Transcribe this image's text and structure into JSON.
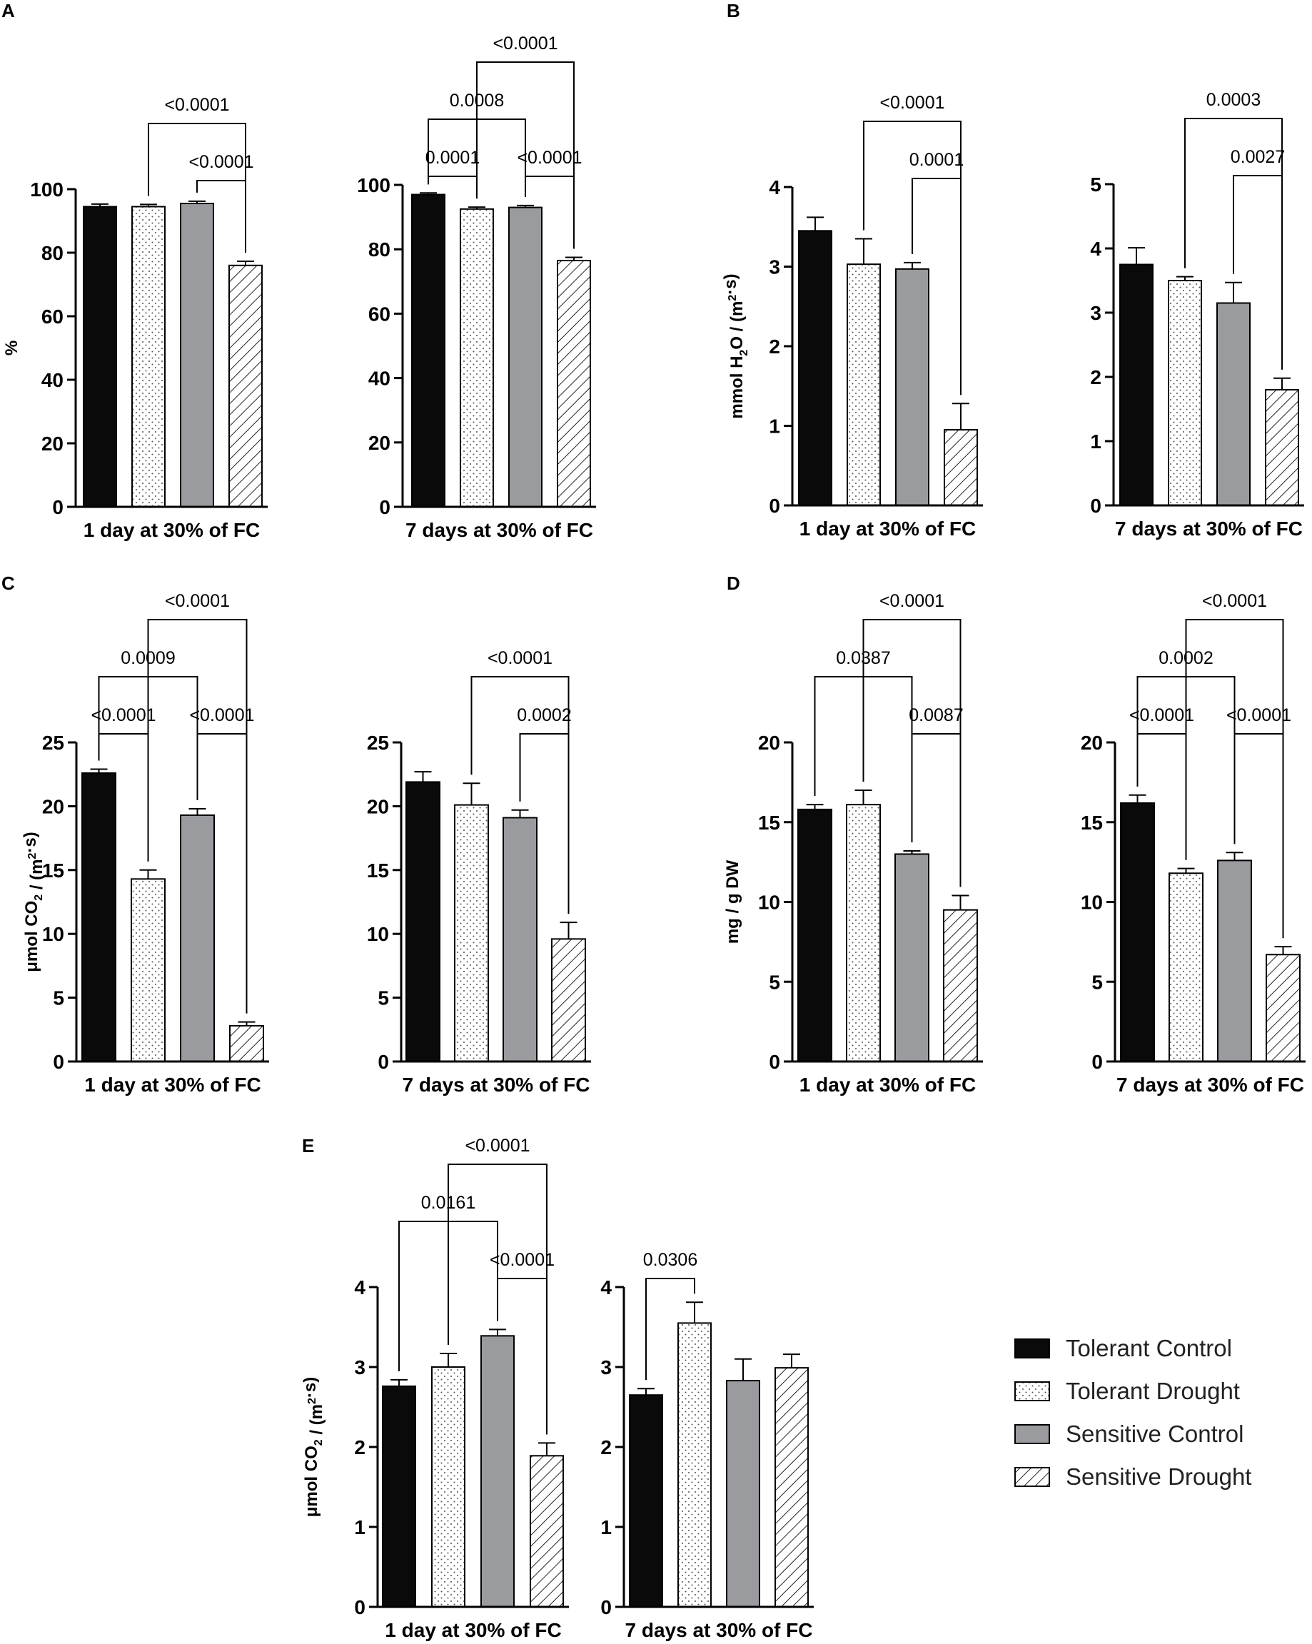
{
  "groups": [
    {
      "name": "Tolerant Control",
      "pattern": "solid-black"
    },
    {
      "name": "Tolerant Drought",
      "pattern": "dots"
    },
    {
      "name": "Sensitive Control",
      "pattern": "solid-gray"
    },
    {
      "name": "Sensitive Drought",
      "pattern": "hatch"
    }
  ],
  "colors": {
    "black": "#0a0a0a",
    "gray": "#9a9b9f",
    "white": "#ffffff"
  },
  "chart_data": [
    {
      "type": "bar",
      "panel": "A",
      "xlabel": "1 day at 30% of FC",
      "ylabel": "%",
      "ylim": [
        0,
        100
      ],
      "yticks": [
        0,
        20,
        40,
        60,
        80,
        100
      ],
      "values": [
        94.5,
        94.5,
        95.5,
        76
      ],
      "errors": [
        0.8,
        0.7,
        0.7,
        1.3
      ],
      "comparisons": [
        {
          "label": "<0.0001",
          "a": 2,
          "b": 3
        },
        {
          "label": "<0.0001",
          "a": 1,
          "b": 3
        }
      ]
    },
    {
      "type": "bar",
      "panel": "A",
      "xlabel": "7 days at 30% of FC",
      "ylabel": "",
      "ylim": [
        0,
        100
      ],
      "yticks": [
        0,
        20,
        40,
        60,
        80,
        100
      ],
      "values": [
        97,
        92.5,
        93,
        76.5
      ],
      "errors": [
        0.5,
        0.6,
        0.6,
        1
      ],
      "comparisons": [
        {
          "label": "0.0001",
          "a": 0,
          "b": 1
        },
        {
          "label": "<0.0001",
          "a": 2,
          "b": 3
        },
        {
          "label": "0.0008",
          "a": 0,
          "b": 2
        },
        {
          "label": "<0.0001",
          "a": 1,
          "b": 3
        }
      ]
    },
    {
      "type": "bar",
      "panel": "B",
      "xlabel": "1 day at 30% of FC",
      "ylabel": "mmol H2O / (m2·s)",
      "ylim": [
        0,
        4
      ],
      "yticks": [
        0,
        1,
        2,
        3,
        4
      ],
      "values": [
        3.45,
        3.03,
        2.97,
        0.95
      ],
      "errors": [
        0.17,
        0.32,
        0.08,
        0.33
      ],
      "comparisons": [
        {
          "label": "0.0001",
          "a": 2,
          "b": 3
        },
        {
          "label": "<0.0001",
          "a": 1,
          "b": 3
        }
      ]
    },
    {
      "type": "bar",
      "panel": "B",
      "xlabel": "7 days at 30% of FC",
      "ylabel": "",
      "ylim": [
        0,
        5
      ],
      "yticks": [
        0,
        1,
        2,
        3,
        4,
        5
      ],
      "values": [
        3.75,
        3.5,
        3.15,
        1.8
      ],
      "errors": [
        0.26,
        0.06,
        0.32,
        0.18
      ],
      "comparisons": [
        {
          "label": "0.0027",
          "a": 2,
          "b": 3
        },
        {
          "label": "0.0003",
          "a": 1,
          "b": 3
        }
      ]
    },
    {
      "type": "bar",
      "panel": "C",
      "xlabel": "1 day at 30% of FC",
      "ylabel": "μmol CO2 / (m2·s)",
      "ylim": [
        0,
        25
      ],
      "yticks": [
        0,
        5,
        10,
        15,
        20,
        25
      ],
      "values": [
        22.6,
        14.3,
        19.3,
        2.8
      ],
      "errors": [
        0.3,
        0.7,
        0.5,
        0.3
      ],
      "comparisons": [
        {
          "label": "<0.0001",
          "a": 0,
          "b": 1
        },
        {
          "label": "<0.0001",
          "a": 2,
          "b": 3
        },
        {
          "label": "0.0009",
          "a": 0,
          "b": 2
        },
        {
          "label": "<0.0001",
          "a": 1,
          "b": 3
        }
      ]
    },
    {
      "type": "bar",
      "panel": "C",
      "xlabel": "7 days at 30% of FC",
      "ylabel": "",
      "ylim": [
        0,
        25
      ],
      "yticks": [
        0,
        5,
        10,
        15,
        20,
        25
      ],
      "values": [
        21.9,
        20.1,
        19.1,
        9.6
      ],
      "errors": [
        0.8,
        1.7,
        0.6,
        1.3
      ],
      "comparisons": [
        {
          "label": "0.0002",
          "a": 2,
          "b": 3
        },
        {
          "label": "<0.0001",
          "a": 1,
          "b": 3
        }
      ]
    },
    {
      "type": "bar",
      "panel": "D",
      "xlabel": "1 day at 30% of FC",
      "ylabel": "mg / g DW",
      "ylim": [
        0,
        20
      ],
      "yticks": [
        0,
        5,
        10,
        15,
        20
      ],
      "values": [
        15.8,
        16.1,
        13,
        9.5
      ],
      "errors": [
        0.3,
        0.9,
        0.2,
        0.9
      ],
      "comparisons": [
        {
          "label": "0.0087",
          "a": 2,
          "b": 3
        },
        {
          "label": "0.0387",
          "a": 0,
          "b": 2
        },
        {
          "label": "<0.0001",
          "a": 1,
          "b": 3
        }
      ]
    },
    {
      "type": "bar",
      "panel": "D",
      "xlabel": "7 days at 30% of FC",
      "ylabel": "",
      "ylim": [
        0,
        20
      ],
      "yticks": [
        0,
        5,
        10,
        15,
        20
      ],
      "values": [
        16.2,
        11.8,
        12.6,
        6.7
      ],
      "errors": [
        0.5,
        0.3,
        0.5,
        0.5
      ],
      "comparisons": [
        {
          "label": "<0.0001",
          "a": 0,
          "b": 1
        },
        {
          "label": "<0.0001",
          "a": 2,
          "b": 3
        },
        {
          "label": "0.0002",
          "a": 0,
          "b": 2
        },
        {
          "label": "<0.0001",
          "a": 1,
          "b": 3
        }
      ]
    },
    {
      "type": "bar",
      "panel": "E",
      "xlabel": "1 day at 30% of FC",
      "ylabel": "μmol CO2 / (m2·s)",
      "ylim": [
        0,
        4
      ],
      "yticks": [
        0,
        1,
        2,
        3,
        4
      ],
      "values": [
        2.76,
        3,
        3.39,
        1.89
      ],
      "errors": [
        0.08,
        0.17,
        0.08,
        0.16
      ],
      "comparisons": [
        {
          "label": "<0.0001",
          "a": 2,
          "b": 3
        },
        {
          "label": "0.0161",
          "a": 0,
          "b": 2
        },
        {
          "label": "<0.0001",
          "a": 1,
          "b": 3
        }
      ]
    },
    {
      "type": "bar",
      "panel": "E",
      "xlabel": "7 days at 30% of FC",
      "ylabel": "",
      "ylim": [
        0,
        4
      ],
      "yticks": [
        0,
        1,
        2,
        3,
        4
      ],
      "values": [
        2.65,
        3.55,
        2.83,
        2.99
      ],
      "errors": [
        0.08,
        0.26,
        0.27,
        0.17
      ],
      "comparisons": [
        {
          "label": "0.0306",
          "a": 0,
          "b": 1
        }
      ]
    }
  ]
}
